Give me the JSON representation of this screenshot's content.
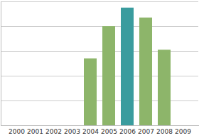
{
  "chart_data": {
    "type": "bar",
    "categories": [
      "2000",
      "2001",
      "2002",
      "2003",
      "2004",
      "2005",
      "2006",
      "2007",
      "2008",
      "2009"
    ],
    "values": [
      null,
      null,
      null,
      null,
      2.7,
      4.0,
      4.75,
      4.35,
      3.05,
      null
    ],
    "colors": [
      null,
      null,
      null,
      null,
      "#8db56a",
      "#8db56a",
      "#3a9c9e",
      "#8db56a",
      "#8db56a",
      null
    ],
    "ylim": [
      0,
      5
    ],
    "yticks": [
      0,
      1,
      2,
      3,
      4,
      5
    ],
    "grid": true,
    "tick_labels": "x"
  }
}
